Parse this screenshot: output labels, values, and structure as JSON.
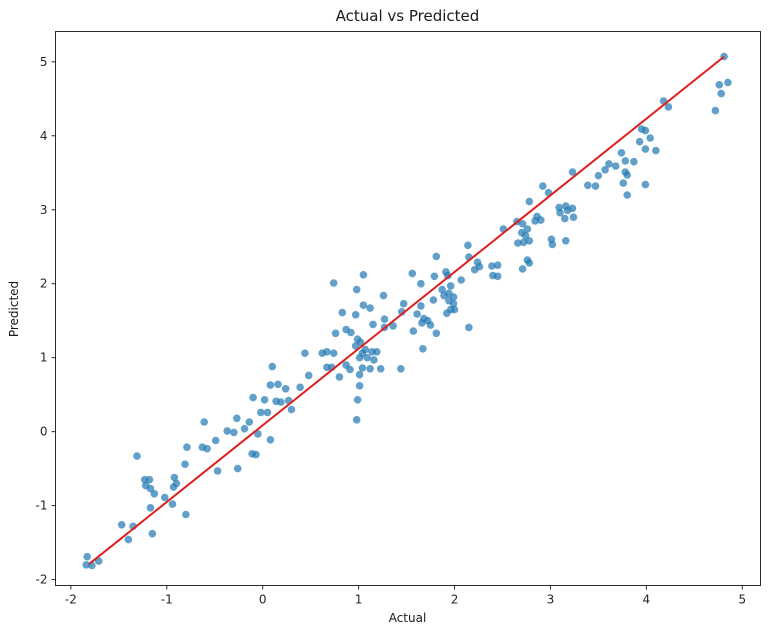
{
  "figure": {
    "background": "#ffffff"
  },
  "chart_data": {
    "type": "scatter",
    "title": "Actual vs Predicted",
    "xlabel": "Actual",
    "ylabel": "Predicted",
    "xlim": [
      -2.16,
      5.19
    ],
    "ylim": [
      -2.08,
      5.41
    ],
    "x_ticks": [
      -2,
      -1,
      0,
      1,
      2,
      3,
      4,
      5
    ],
    "y_ticks": [
      -2,
      -1,
      0,
      1,
      2,
      3,
      4,
      5
    ],
    "grid": false,
    "legend": false,
    "point_color": "#1f77b4",
    "point_alpha": 0.7,
    "point_radius": 3.8,
    "line_color": "#e01e1e",
    "line_width": 2,
    "spine_color": "#2b2b2b",
    "series": [
      {
        "name": "predictions-scatter",
        "type": "scatter",
        "points": [
          [
            -1.83,
            -1.69
          ],
          [
            -1.84,
            -1.8
          ],
          [
            -1.78,
            -1.81
          ],
          [
            -1.71,
            -1.75
          ],
          [
            -1.47,
            -1.26
          ],
          [
            -1.4,
            -1.46
          ],
          [
            -1.35,
            -1.28
          ],
          [
            -1.31,
            -0.33
          ],
          [
            -1.23,
            -0.65
          ],
          [
            -1.22,
            -0.73
          ],
          [
            -1.18,
            -0.65
          ],
          [
            -1.17,
            -0.77
          ],
          [
            -1.17,
            -1.03
          ],
          [
            -1.15,
            -1.38
          ],
          [
            -1.13,
            -0.84
          ],
          [
            -1.02,
            -0.89
          ],
          [
            -0.94,
            -0.98
          ],
          [
            -0.93,
            -0.75
          ],
          [
            -0.92,
            -0.62
          ],
          [
            -0.9,
            -0.7
          ],
          [
            -0.81,
            -0.44
          ],
          [
            -0.8,
            -1.12
          ],
          [
            -0.79,
            -0.21
          ],
          [
            -0.63,
            -0.21
          ],
          [
            -0.61,
            0.13
          ],
          [
            -0.58,
            -0.23
          ],
          [
            -0.49,
            -0.12
          ],
          [
            -0.47,
            -0.53
          ],
          [
            -0.37,
            0.01
          ],
          [
            -0.3,
            -0.01
          ],
          [
            -0.27,
            0.18
          ],
          [
            -0.26,
            -0.5
          ],
          [
            -0.19,
            0.04
          ],
          [
            -0.14,
            0.13
          ],
          [
            -0.11,
            -0.3
          ],
          [
            -0.1,
            0.46
          ],
          [
            -0.07,
            -0.31
          ],
          [
            -0.05,
            -0.03
          ],
          [
            -0.02,
            0.26
          ],
          [
            0.02,
            0.43
          ],
          [
            0.05,
            0.26
          ],
          [
            0.08,
            0.63
          ],
          [
            0.08,
            -0.11
          ],
          [
            0.1,
            0.88
          ],
          [
            0.14,
            0.41
          ],
          [
            0.16,
            0.64
          ],
          [
            0.19,
            0.4
          ],
          [
            0.24,
            0.58
          ],
          [
            0.27,
            0.42
          ],
          [
            0.3,
            0.3
          ],
          [
            0.39,
            0.6
          ],
          [
            0.44,
            1.06
          ],
          [
            0.48,
            0.76
          ],
          [
            0.62,
            1.06
          ],
          [
            0.67,
            1.08
          ],
          [
            0.67,
            0.87
          ],
          [
            0.72,
            0.87
          ],
          [
            0.74,
            1.06
          ],
          [
            0.74,
            2.01
          ],
          [
            0.76,
            1.33
          ],
          [
            0.8,
            0.74
          ],
          [
            0.83,
            1.61
          ],
          [
            0.87,
            1.38
          ],
          [
            0.87,
            0.9
          ],
          [
            0.91,
            0.84
          ],
          [
            0.92,
            1.34
          ],
          [
            0.97,
            1.58
          ],
          [
            0.97,
            1.16
          ],
          [
            0.98,
            1.92
          ],
          [
            0.98,
            0.16
          ],
          [
            0.99,
            1.25
          ],
          [
            0.99,
            0.43
          ],
          [
            1.01,
            1.0
          ],
          [
            1.01,
            0.77
          ],
          [
            1.01,
            0.62
          ],
          [
            1.02,
            1.21
          ],
          [
            1.04,
            1.06
          ],
          [
            1.04,
            0.86
          ],
          [
            1.05,
            2.12
          ],
          [
            1.05,
            1.71
          ],
          [
            1.07,
            1.11
          ],
          [
            1.09,
            1.0
          ],
          [
            1.12,
            1.67
          ],
          [
            1.12,
            0.85
          ],
          [
            1.14,
            1.08
          ],
          [
            1.15,
            1.45
          ],
          [
            1.16,
            0.97
          ],
          [
            1.19,
            1.08
          ],
          [
            1.23,
            0.85
          ],
          [
            1.26,
            1.84
          ],
          [
            1.27,
            1.52
          ],
          [
            1.27,
            1.41
          ],
          [
            1.36,
            1.43
          ],
          [
            1.44,
            0.85
          ],
          [
            1.45,
            1.62
          ],
          [
            1.47,
            1.73
          ],
          [
            1.56,
            2.14
          ],
          [
            1.57,
            1.36
          ],
          [
            1.61,
            1.59
          ],
          [
            1.65,
            2.0
          ],
          [
            1.65,
            1.7
          ],
          [
            1.66,
            1.47
          ],
          [
            1.67,
            1.12
          ],
          [
            1.68,
            1.53
          ],
          [
            1.72,
            1.5
          ],
          [
            1.75,
            1.44
          ],
          [
            1.78,
            1.78
          ],
          [
            1.79,
            2.1
          ],
          [
            1.81,
            2.37
          ],
          [
            1.81,
            1.33
          ],
          [
            1.87,
            1.92
          ],
          [
            1.89,
            1.84
          ],
          [
            1.91,
            2.16
          ],
          [
            1.92,
            1.6
          ],
          [
            1.93,
            2.11
          ],
          [
            1.94,
            1.87
          ],
          [
            1.94,
            1.77
          ],
          [
            1.96,
            1.97
          ],
          [
            1.96,
            1.65
          ],
          [
            1.99,
            1.82
          ],
          [
            1.99,
            1.73
          ],
          [
            2.0,
            1.65
          ],
          [
            2.07,
            2.05
          ],
          [
            2.14,
            2.52
          ],
          [
            2.15,
            2.36
          ],
          [
            2.15,
            1.41
          ],
          [
            2.21,
            2.19
          ],
          [
            2.24,
            2.29
          ],
          [
            2.26,
            2.23
          ],
          [
            2.39,
            2.24
          ],
          [
            2.4,
            2.11
          ],
          [
            2.45,
            2.25
          ],
          [
            2.45,
            2.1
          ],
          [
            2.51,
            2.74
          ],
          [
            2.65,
            2.84
          ],
          [
            2.66,
            2.55
          ],
          [
            2.7,
            2.69
          ],
          [
            2.71,
            2.81
          ],
          [
            2.71,
            2.2
          ],
          [
            2.72,
            2.56
          ],
          [
            2.74,
            2.65
          ],
          [
            2.76,
            2.74
          ],
          [
            2.76,
            2.32
          ],
          [
            2.78,
            3.11
          ],
          [
            2.78,
            2.58
          ],
          [
            2.78,
            2.28
          ],
          [
            2.84,
            2.85
          ],
          [
            2.86,
            2.91
          ],
          [
            2.9,
            2.86
          ],
          [
            2.92,
            3.32
          ],
          [
            2.98,
            3.23
          ],
          [
            3.01,
            2.6
          ],
          [
            3.02,
            2.53
          ],
          [
            3.09,
            3.03
          ],
          [
            3.1,
            2.96
          ],
          [
            3.15,
            2.88
          ],
          [
            3.16,
            3.05
          ],
          [
            3.16,
            2.58
          ],
          [
            3.18,
            2.99
          ],
          [
            3.23,
            3.51
          ],
          [
            3.23,
            3.02
          ],
          [
            3.24,
            2.9
          ],
          [
            3.39,
            3.33
          ],
          [
            3.47,
            3.32
          ],
          [
            3.5,
            3.46
          ],
          [
            3.57,
            3.54
          ],
          [
            3.61,
            3.62
          ],
          [
            3.68,
            3.59
          ],
          [
            3.74,
            3.77
          ],
          [
            3.76,
            3.36
          ],
          [
            3.78,
            3.66
          ],
          [
            3.78,
            3.51
          ],
          [
            3.8,
            3.47
          ],
          [
            3.8,
            3.2
          ],
          [
            3.87,
            3.65
          ],
          [
            3.93,
            3.92
          ],
          [
            3.95,
            4.09
          ],
          [
            3.99,
            4.07
          ],
          [
            3.99,
            3.82
          ],
          [
            3.99,
            3.34
          ],
          [
            4.04,
            3.97
          ],
          [
            4.1,
            3.8
          ],
          [
            4.18,
            4.47
          ],
          [
            4.23,
            4.39
          ],
          [
            4.72,
            4.34
          ],
          [
            4.76,
            4.69
          ],
          [
            4.78,
            4.57
          ],
          [
            4.81,
            5.07
          ],
          [
            4.85,
            4.72
          ]
        ]
      },
      {
        "name": "fit-line",
        "type": "line",
        "x": [
          -1.81,
          4.81
        ],
        "y": [
          -1.79,
          5.07
        ]
      }
    ]
  }
}
